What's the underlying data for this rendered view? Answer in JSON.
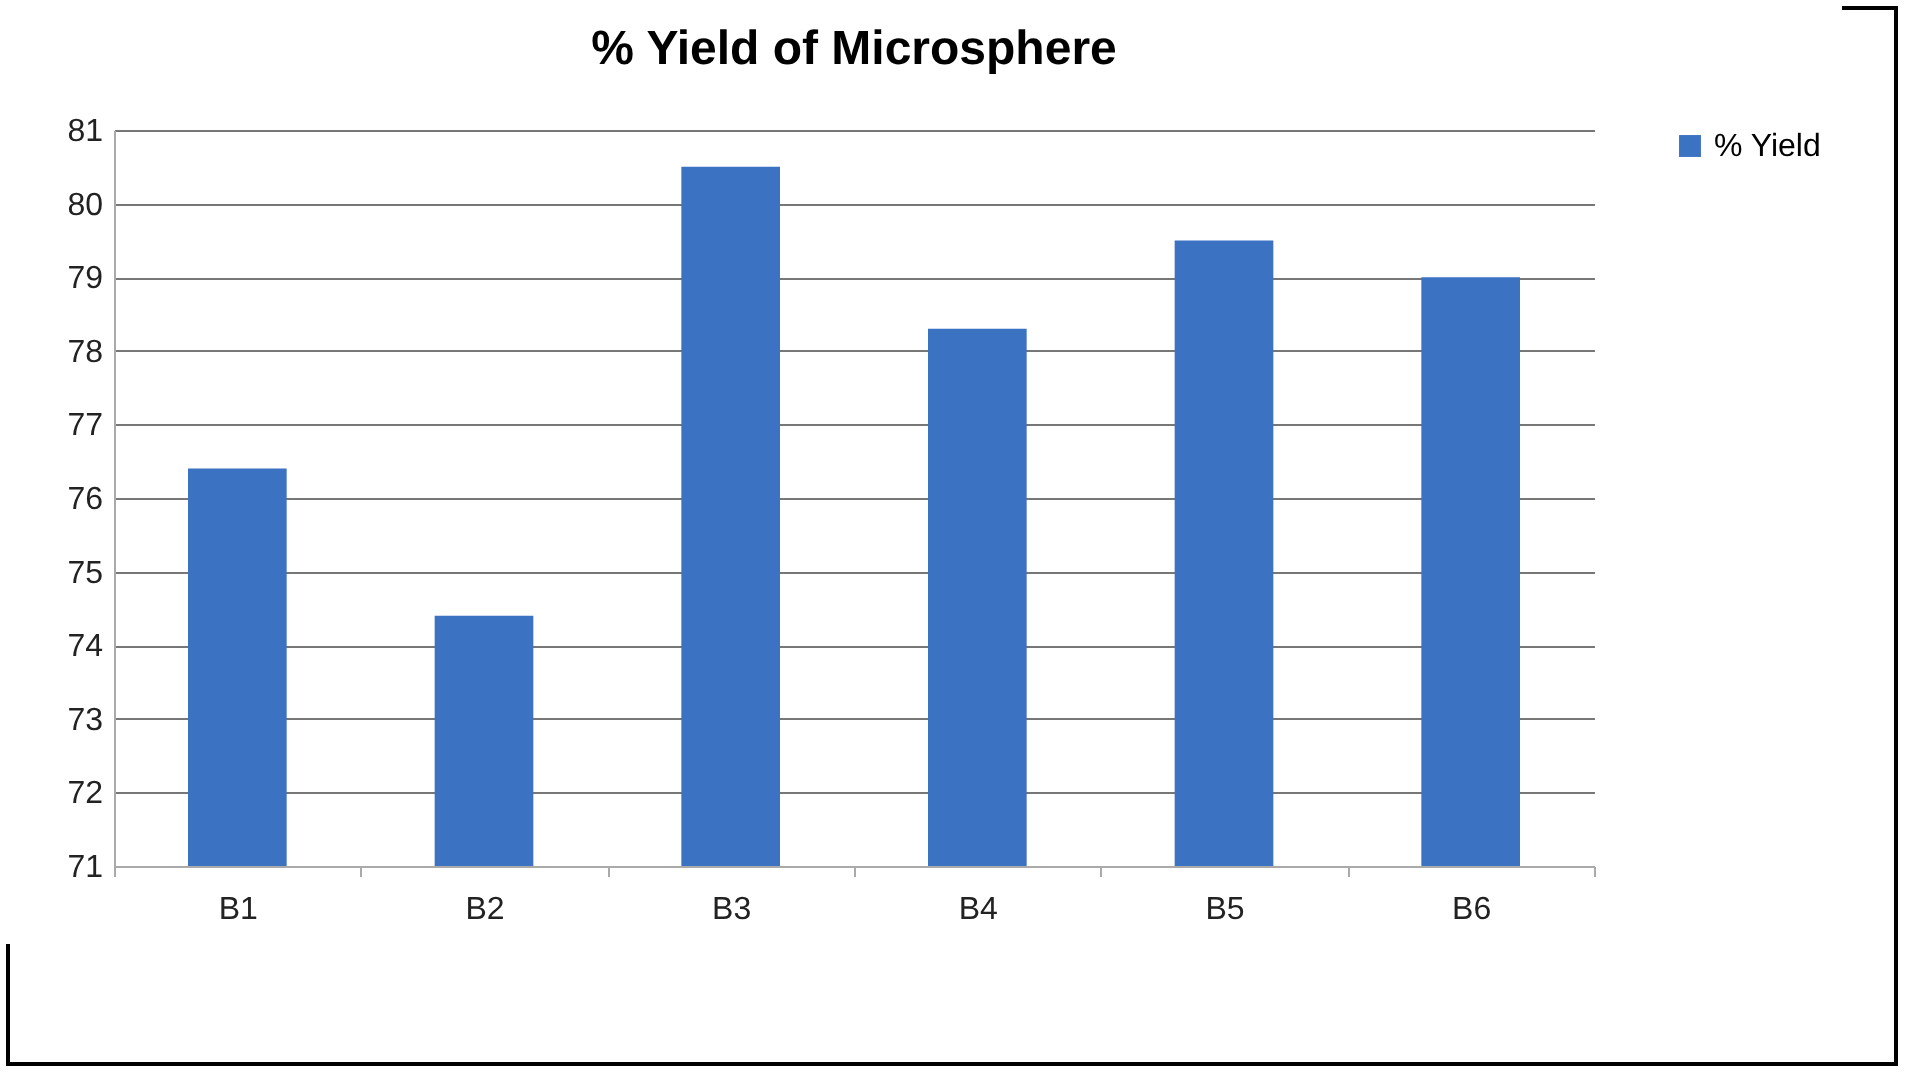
{
  "chart_data": {
    "type": "bar",
    "title": "% Yield of Microsphere",
    "categories": [
      "B1",
      "B2",
      "B3",
      "B4",
      "B5",
      "B6"
    ],
    "series": [
      {
        "name": "% Yield",
        "color": "#3b72c2",
        "values": [
          76.4,
          74.4,
          80.5,
          78.3,
          79.5,
          79.0
        ]
      }
    ],
    "ylim": [
      71,
      81
    ],
    "yticks": [
      71,
      72,
      73,
      74,
      75,
      76,
      77,
      78,
      79,
      80,
      81
    ],
    "grid": "y",
    "legend": "right"
  }
}
